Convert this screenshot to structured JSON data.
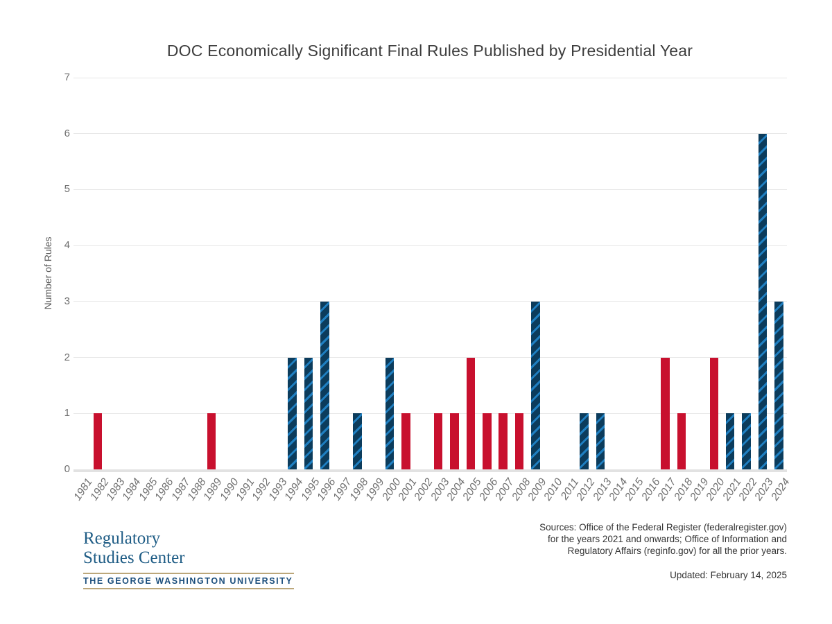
{
  "chart_data": {
    "type": "bar",
    "title": "DOC Economically Significant Final Rules Published by Presidential Year",
    "ylabel": "Number of Rules",
    "xlabel": "",
    "ylim": [
      0,
      7
    ],
    "yticks": [
      0,
      1,
      2,
      3,
      4,
      5,
      6,
      7
    ],
    "grid": true,
    "legend": "none",
    "categories": [
      "1981",
      "1982",
      "1983",
      "1984",
      "1985",
      "1986",
      "1987",
      "1988",
      "1989",
      "1990",
      "1991",
      "1992",
      "1993",
      "1994",
      "1995",
      "1996",
      "1997",
      "1998",
      "1999",
      "2000",
      "2001",
      "2002",
      "2003",
      "2004",
      "2005",
      "2006",
      "2007",
      "2008",
      "2009",
      "2010",
      "2011",
      "2012",
      "2013",
      "2014",
      "2015",
      "2016",
      "2017",
      "2018",
      "2019",
      "2020",
      "2021",
      "2022",
      "2023",
      "2024"
    ],
    "values": [
      0,
      1,
      0,
      0,
      0,
      0,
      0,
      0,
      1,
      0,
      0,
      0,
      0,
      2,
      2,
      3,
      0,
      1,
      0,
      2,
      1,
      0,
      1,
      1,
      2,
      1,
      1,
      1,
      3,
      0,
      0,
      1,
      1,
      0,
      0,
      0,
      2,
      1,
      0,
      2,
      1,
      1,
      6,
      3
    ],
    "party": [
      "R",
      "R",
      "R",
      "R",
      "R",
      "R",
      "R",
      "R",
      "R",
      "R",
      "R",
      "R",
      "D",
      "D",
      "D",
      "D",
      "D",
      "D",
      "D",
      "D",
      "R",
      "R",
      "R",
      "R",
      "R",
      "R",
      "R",
      "R",
      "D",
      "D",
      "D",
      "D",
      "D",
      "D",
      "D",
      "D",
      "R",
      "R",
      "R",
      "R",
      "D",
      "D",
      "D",
      "D"
    ],
    "colors": {
      "R": "#c8102e",
      "D": "#0c3c5c"
    },
    "hatch_color": "#1f7fc1",
    "hatch_applies_to": "D"
  },
  "footer": {
    "logo": {
      "line1": "Regulatory",
      "line2": "Studies Center",
      "university": "THE GEORGE WASHINGTON UNIVERSITY"
    },
    "sources_lines": [
      "Sources: Office of the Federal Register (federalregister.gov)",
      "for the years 2021 and onwards; Office of Information and",
      "Regulatory Affairs (reginfo.gov) for all the prior years."
    ],
    "updated": "Updated: February 14, 2025"
  }
}
